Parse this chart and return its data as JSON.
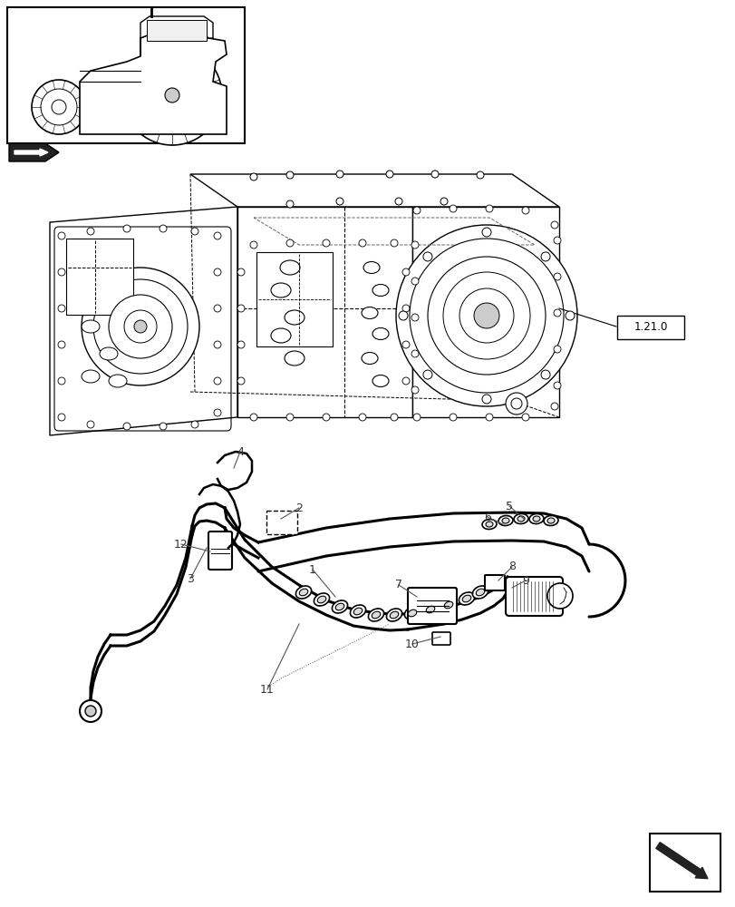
{
  "bg_color": "#ffffff",
  "line_color": "#000000",
  "gray_light": "#e8e8e8",
  "gray_mid": "#d0d0d0",
  "gray_dark": "#b0b0b0",
  "ref_label": "1.21.0",
  "fig_width": 8.12,
  "fig_height": 10.0
}
